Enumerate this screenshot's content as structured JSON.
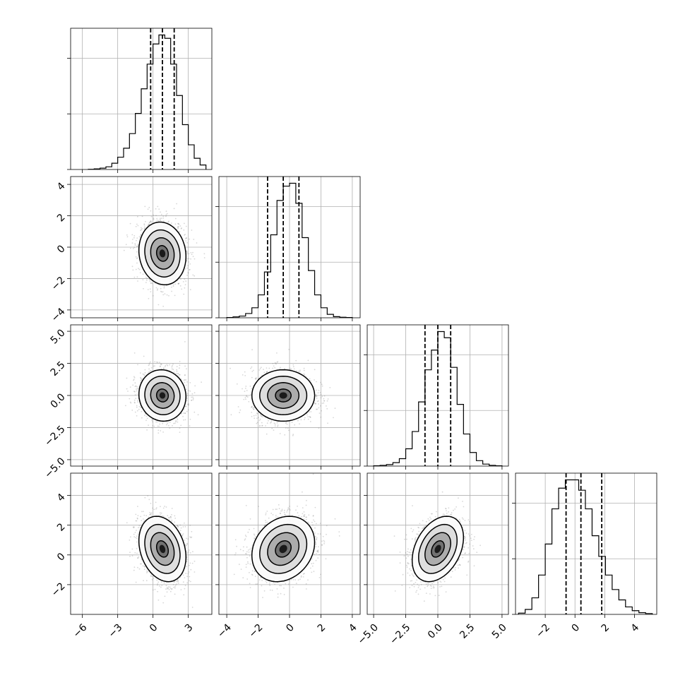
{
  "chart_data": {
    "type": "corner",
    "grid": true,
    "n_params": 4,
    "params": [
      {
        "index": 0,
        "range": [
          -7,
          5
        ],
        "xticks": [
          -6,
          -3,
          0,
          3
        ],
        "xtick_labels": [
          "−6",
          "−3",
          "0",
          "3"
        ],
        "yticks": [],
        "ytick_labels": [],
        "mean": 0.8,
        "sigma": 1.0,
        "quantiles": [
          -0.2,
          0.8,
          1.8
        ]
      },
      {
        "index": 1,
        "range": [
          -4.5,
          4.5
        ],
        "xticks": [
          -4,
          -2,
          0,
          2,
          4
        ],
        "xtick_labels": [
          "−4",
          "−2",
          "0",
          "2",
          "4"
        ],
        "yticks": [
          -4,
          -2,
          0,
          2,
          4
        ],
        "ytick_labels": [
          "−4",
          "−2",
          "0",
          "2",
          "4"
        ],
        "mean": -0.4,
        "sigma": 1.0,
        "quantiles": [
          -1.4,
          -0.4,
          0.6
        ]
      },
      {
        "index": 2,
        "range": [
          -5.5,
          5.5
        ],
        "xticks": [
          -5.0,
          -2.5,
          0.0,
          2.5,
          5.0
        ],
        "xtick_labels": [
          "−5.0",
          "−2.5",
          "0.0",
          "2.5",
          "5.0"
        ],
        "yticks": [
          -5.0,
          -2.5,
          0.0,
          2.5,
          5.0
        ],
        "ytick_labels": [
          "−5.0",
          "−2.5",
          "0.0",
          "2.5",
          "5.0"
        ],
        "mean": 0.0,
        "sigma": 1.0,
        "quantiles": [
          -1.0,
          0.0,
          1.0
        ]
      },
      {
        "index": 3,
        "range": [
          -4,
          5.5
        ],
        "xticks": [
          -2,
          0,
          2,
          4
        ],
        "xtick_labels": [
          "−2",
          "0",
          "2",
          "4"
        ],
        "yticks": [
          -2,
          0,
          2,
          4
        ],
        "ytick_labels": [
          "−2",
          "0",
          "2",
          "4"
        ],
        "mean": 0.4,
        "sigma": 1.1,
        "quantiles": [
          -0.6,
          0.4,
          1.8
        ]
      }
    ],
    "histograms": [
      {
        "param": 0,
        "bin_edges": [
          -5.5,
          -5.0,
          -4.5,
          -4.0,
          -3.5,
          -3.0,
          -2.5,
          -2.0,
          -1.5,
          -1.0,
          -0.5,
          0.0,
          0.5,
          1.0,
          1.5,
          2.0,
          2.5,
          3.0,
          3.5,
          4.0,
          4.5
        ],
        "counts": [
          1,
          3,
          6,
          12,
          28,
          55,
          95,
          160,
          250,
          360,
          470,
          560,
          600,
          585,
          470,
          330,
          200,
          110,
          50,
          20
        ]
      },
      {
        "param": 1,
        "bin_edges": [
          -4.0,
          -3.6,
          -3.2,
          -2.8,
          -2.4,
          -2.0,
          -1.6,
          -1.2,
          -0.8,
          -0.4,
          0.0,
          0.4,
          0.8,
          1.2,
          1.6,
          2.0,
          2.4,
          2.8,
          3.2,
          3.6,
          4.0
        ],
        "counts": [
          1,
          3,
          6,
          15,
          35,
          80,
          160,
          290,
          410,
          460,
          470,
          400,
          280,
          165,
          80,
          35,
          12,
          4,
          2,
          1
        ]
      },
      {
        "param": 2,
        "bin_edges": [
          -5.0,
          -4.5,
          -4.0,
          -3.5,
          -3.0,
          -2.5,
          -2.0,
          -1.5,
          -1.0,
          -0.5,
          0.0,
          0.5,
          1.0,
          1.5,
          2.0,
          2.5,
          3.0,
          3.5,
          4.0,
          4.5,
          5.0
        ],
        "counts": [
          1,
          3,
          6,
          14,
          30,
          70,
          140,
          260,
          390,
          470,
          545,
          520,
          400,
          250,
          130,
          55,
          22,
          8,
          3,
          1
        ]
      },
      {
        "param": 3,
        "bin_edges": [
          -3.8,
          -3.35,
          -2.9,
          -2.45,
          -2.0,
          -1.55,
          -1.1,
          -0.65,
          -0.2,
          0.25,
          0.7,
          1.15,
          1.6,
          2.05,
          2.5,
          2.95,
          3.4,
          3.85,
          4.3,
          4.75,
          5.2
        ],
        "counts": [
          3,
          12,
          40,
          95,
          170,
          255,
          305,
          325,
          325,
          300,
          255,
          190,
          140,
          95,
          60,
          35,
          18,
          9,
          4,
          2
        ]
      }
    ],
    "pairs": [
      {
        "x_param": 0,
        "y_param": 1,
        "rho": -0.1
      },
      {
        "x_param": 0,
        "y_param": 2,
        "rho": -0.05
      },
      {
        "x_param": 1,
        "y_param": 2,
        "rho": 0.0
      },
      {
        "x_param": 0,
        "y_param": 3,
        "rho": -0.25
      },
      {
        "x_param": 1,
        "y_param": 3,
        "rho": 0.2
      },
      {
        "x_param": 2,
        "y_param": 3,
        "rho": 0.35
      }
    ],
    "contour_levels_sigma": [
      0.5,
      1.0,
      1.5,
      2.0
    ],
    "colors": {
      "hist": "#000000",
      "contour": "#000000",
      "scatter": "#7a7a7a",
      "grid": "#b0b0b0"
    }
  }
}
